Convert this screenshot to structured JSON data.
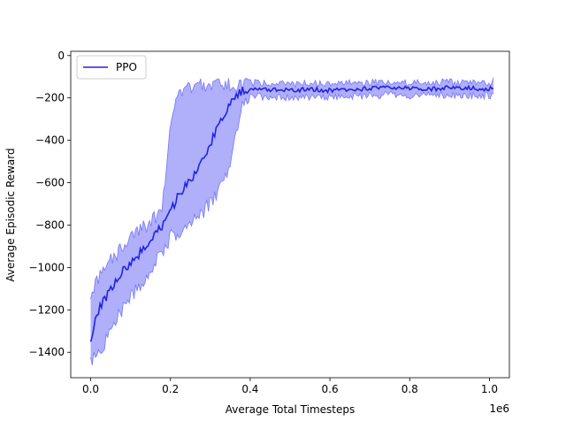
{
  "chart_data": {
    "type": "line",
    "title": "",
    "xlabel": "Average Total Timesteps",
    "ylabel": "Average Episodic Reward",
    "x_offset_label": "1e6",
    "xlim": [
      -0.05,
      1.05
    ],
    "ylim": [
      -1520,
      20
    ],
    "xticks": [
      0.0,
      0.2,
      0.4,
      0.6,
      0.8,
      1.0
    ],
    "xtick_labels": [
      "0.0",
      "0.2",
      "0.4",
      "0.6",
      "0.8",
      "1.0"
    ],
    "yticks": [
      0,
      -200,
      -400,
      -600,
      -800,
      -1000,
      -1200,
      -1400
    ],
    "ytick_labels": [
      "0",
      "−200",
      "−400",
      "−600",
      "−800",
      "−1000",
      "−1200",
      "−1400"
    ],
    "grid": false,
    "legend": {
      "position": "top-left",
      "entries": [
        "PPO"
      ]
    },
    "series": [
      {
        "name": "PPO",
        "color": "#2222e6",
        "band_color": "#6e6ef5",
        "x": [
          0.0,
          0.02,
          0.05,
          0.08,
          0.1,
          0.12,
          0.15,
          0.18,
          0.2,
          0.22,
          0.25,
          0.28,
          0.3,
          0.32,
          0.34,
          0.36,
          0.38,
          0.4,
          0.45,
          0.5,
          0.55,
          0.6,
          0.65,
          0.7,
          0.75,
          0.8,
          0.85,
          0.9,
          0.95,
          1.0,
          1.01
        ],
        "mean": [
          -1340,
          -1200,
          -1100,
          -1020,
          -980,
          -940,
          -880,
          -800,
          -740,
          -660,
          -590,
          -500,
          -420,
          -330,
          -260,
          -200,
          -165,
          -155,
          -160,
          -165,
          -160,
          -165,
          -160,
          -155,
          -150,
          -155,
          -160,
          -150,
          -155,
          -160,
          -145
        ],
        "upper": [
          -1120,
          -1050,
          -970,
          -900,
          -850,
          -820,
          -790,
          -720,
          -330,
          -170,
          -150,
          -140,
          -140,
          -140,
          -140,
          -140,
          -135,
          -130,
          -130,
          -135,
          -130,
          -135,
          -130,
          -130,
          -125,
          -130,
          -130,
          -125,
          -130,
          -130,
          -120
        ],
        "lower": [
          -1430,
          -1420,
          -1290,
          -1200,
          -1140,
          -1100,
          -1020,
          -920,
          -860,
          -830,
          -790,
          -740,
          -700,
          -640,
          -560,
          -430,
          -230,
          -190,
          -200,
          -200,
          -195,
          -195,
          -195,
          -190,
          -185,
          -190,
          -190,
          -185,
          -190,
          -190,
          -175
        ]
      }
    ]
  }
}
